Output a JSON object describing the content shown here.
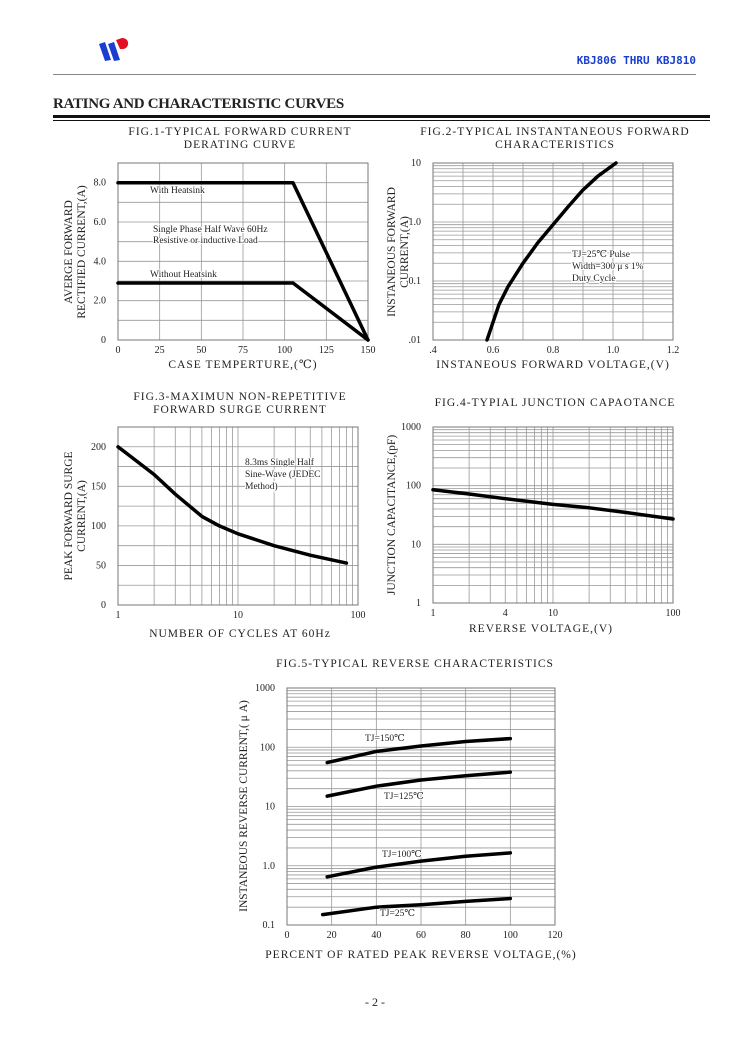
{
  "header": {
    "part_number": "KBJ806 THRU KBJ810",
    "section_title": "RATING AND CHARACTERISTIC CURVES",
    "logo_text": "WP"
  },
  "footer": {
    "page": "- 2 -"
  },
  "colors": {
    "brand_blue": "#1a3fd0",
    "brand_red": "#e01020",
    "grid": "#999999",
    "curve": "#000000"
  },
  "chart_data": [
    {
      "type": "line",
      "title": [
        "FIG.1-TYPICAL FORWARD CURRENT",
        "DERATING CURVE"
      ],
      "xlabel": "CASE TEMPERTURE,(℃)",
      "ylabel": [
        "AVERGE FORWARD",
        "RECTIFIED CURRENT,(A)"
      ],
      "xscale": "linear",
      "yscale": "linear",
      "xlim": [
        0,
        150
      ],
      "ylim": [
        0,
        9
      ],
      "xticks": [
        {
          "v": 0,
          "t": "0"
        },
        {
          "v": 25,
          "t": "25"
        },
        {
          "v": 50,
          "t": "50"
        },
        {
          "v": 75,
          "t": "75"
        },
        {
          "v": 100,
          "t": "100"
        },
        {
          "v": 125,
          "t": "125"
        },
        {
          "v": 150,
          "t": "150"
        }
      ],
      "yticks": [
        {
          "v": 0,
          "t": "0"
        },
        {
          "v": 2,
          "t": "2.0"
        },
        {
          "v": 4,
          "t": "4.0"
        },
        {
          "v": 6,
          "t": "6.0"
        },
        {
          "v": 8,
          "t": "8.0"
        }
      ],
      "grid": true,
      "series": [
        {
          "name": "With Heatsink",
          "x": [
            0,
            105,
            150
          ],
          "y": [
            8,
            8,
            0
          ]
        },
        {
          "name": "Without Heatsink",
          "x": [
            0,
            105,
            150
          ],
          "y": [
            2.9,
            2.9,
            0
          ]
        }
      ],
      "annotations": [
        "With Heatsink",
        "Single Phase Half Wave 60Hz",
        "Resistive or inductive Load",
        "Without Heatsink"
      ]
    },
    {
      "type": "line",
      "title": [
        "FIG.2-TYPICAL INSTANTANEOUS FORWARD",
        "CHARACTERISTICS"
      ],
      "xlabel": "INSTANEOUS FORWARD VOLTAGE,(V)",
      "ylabel": [
        "INSTANEOUS FORWARD",
        "CURRENT,(A)"
      ],
      "xscale": "linear",
      "yscale": "log",
      "xlim": [
        0.4,
        1.2
      ],
      "ylim": [
        0.01,
        10
      ],
      "xticks": [
        {
          "v": 0.4,
          "t": ".4"
        },
        {
          "v": 0.6,
          "t": "0.6"
        },
        {
          "v": 0.8,
          "t": "0.8"
        },
        {
          "v": 1.0,
          "t": "1.0"
        },
        {
          "v": 1.2,
          "t": "1.2"
        }
      ],
      "yticks": [
        {
          "v": 0.01,
          "t": ".01"
        },
        {
          "v": 0.1,
          "t": "0.1"
        },
        {
          "v": 1,
          "t": "1.0"
        },
        {
          "v": 10,
          "t": "10"
        }
      ],
      "grid": true,
      "series": [
        {
          "name": "TJ=25℃",
          "x": [
            0.58,
            0.62,
            0.65,
            0.7,
            0.75,
            0.8,
            0.85,
            0.9,
            0.95,
            1.01
          ],
          "y": [
            0.01,
            0.04,
            0.08,
            0.2,
            0.45,
            0.9,
            1.8,
            3.5,
            6,
            10
          ]
        }
      ],
      "annotations": [
        "TJ=25℃ Pulse",
        "Width=300 μ s 1%",
        "Duty Cycle"
      ]
    },
    {
      "type": "line",
      "title": [
        "FIG.3-MAXIMUN NON-REPETITIVE",
        "FORWARD SURGE CURRENT"
      ],
      "xlabel": "NUMBER OF CYCLES AT 60Hz",
      "ylabel": [
        "PEAK FORWARD SURGE",
        "CURRENT,(A)"
      ],
      "xscale": "log",
      "yscale": "linear",
      "xlim": [
        1,
        100
      ],
      "ylim": [
        0,
        225
      ],
      "xticks": [
        {
          "v": 1,
          "t": "1"
        },
        {
          "v": 10,
          "t": "10"
        },
        {
          "v": 100,
          "t": "100"
        }
      ],
      "yticks": [
        {
          "v": 0,
          "t": "0"
        },
        {
          "v": 50,
          "t": "50"
        },
        {
          "v": 100,
          "t": "100"
        },
        {
          "v": 150,
          "t": "150"
        },
        {
          "v": 200,
          "t": "200"
        }
      ],
      "grid": true,
      "series": [
        {
          "name": "8.3ms Single Half Sine-Wave",
          "x": [
            1,
            2,
            3,
            5,
            7,
            10,
            20,
            40,
            80
          ],
          "y": [
            200,
            165,
            140,
            112,
            100,
            90,
            75,
            63,
            53
          ]
        }
      ],
      "annotations": [
        "8.3ms Single Half",
        "Sine-Wave (JEDEC",
        "Method)"
      ]
    },
    {
      "type": "line",
      "title": [
        "FIG.4-TYPIAL JUNCTION CAPAOTANCE"
      ],
      "xlabel": "REVERSE VOLTAGE,(V)",
      "ylabel": [
        "JUNCTION CAPACITANCE,(pF)"
      ],
      "xscale": "log",
      "yscale": "log",
      "xlim": [
        1,
        100
      ],
      "ylim": [
        1,
        1000
      ],
      "xticks": [
        {
          "v": 1,
          "t": "1"
        },
        {
          "v": 4,
          "t": "4"
        },
        {
          "v": 10,
          "t": "10"
        },
        {
          "v": 100,
          "t": "100"
        }
      ],
      "yticks": [
        {
          "v": 1,
          "t": "1"
        },
        {
          "v": 10,
          "t": "10"
        },
        {
          "v": 100,
          "t": "100"
        },
        {
          "v": 1000,
          "t": "1000"
        }
      ],
      "grid": true,
      "series": [
        {
          "name": "Capacitance",
          "x": [
            1,
            2,
            4,
            10,
            20,
            40,
            100
          ],
          "y": [
            85,
            72,
            60,
            48,
            42,
            35,
            27
          ]
        }
      ],
      "annotations": []
    },
    {
      "type": "line",
      "title": [
        "FIG.5-TYPICAL REVERSE CHARACTERISTICS"
      ],
      "xlabel": "PERCENT OF RATED PEAK REVERSE VOLTAGE,(%)",
      "ylabel": [
        "INSTANEOUS REVERSE CURRENT,( μ A)"
      ],
      "xscale": "linear",
      "yscale": "log",
      "xlim": [
        0,
        120
      ],
      "ylim": [
        0.1,
        1000
      ],
      "xticks": [
        {
          "v": 0,
          "t": "0"
        },
        {
          "v": 20,
          "t": "20"
        },
        {
          "v": 40,
          "t": "40"
        },
        {
          "v": 60,
          "t": "60"
        },
        {
          "v": 80,
          "t": "80"
        },
        {
          "v": 100,
          "t": "100"
        },
        {
          "v": 120,
          "t": "120"
        }
      ],
      "yticks": [
        {
          "v": 0.1,
          "t": "0.1"
        },
        {
          "v": 1,
          "t": "1.0"
        },
        {
          "v": 10,
          "t": "10"
        },
        {
          "v": 100,
          "t": "100"
        },
        {
          "v": 1000,
          "t": "1000"
        }
      ],
      "grid": true,
      "series": [
        {
          "name": "TJ=150℃",
          "x": [
            18,
            40,
            60,
            80,
            100
          ],
          "y": [
            55,
            85,
            105,
            125,
            140
          ]
        },
        {
          "name": "TJ=125℃",
          "x": [
            18,
            40,
            60,
            80,
            100
          ],
          "y": [
            15,
            22,
            28,
            33,
            38
          ]
        },
        {
          "name": "TJ=100℃",
          "x": [
            18,
            40,
            60,
            80,
            100
          ],
          "y": [
            0.65,
            0.95,
            1.2,
            1.45,
            1.65
          ]
        },
        {
          "name": "TJ=25℃",
          "x": [
            16,
            40,
            60,
            80,
            100
          ],
          "y": [
            0.15,
            0.2,
            0.22,
            0.25,
            0.28
          ]
        }
      ],
      "annotations": [
        "TJ=150℃",
        "TJ=125℃",
        "TJ=100℃",
        "TJ=25℃"
      ]
    }
  ]
}
